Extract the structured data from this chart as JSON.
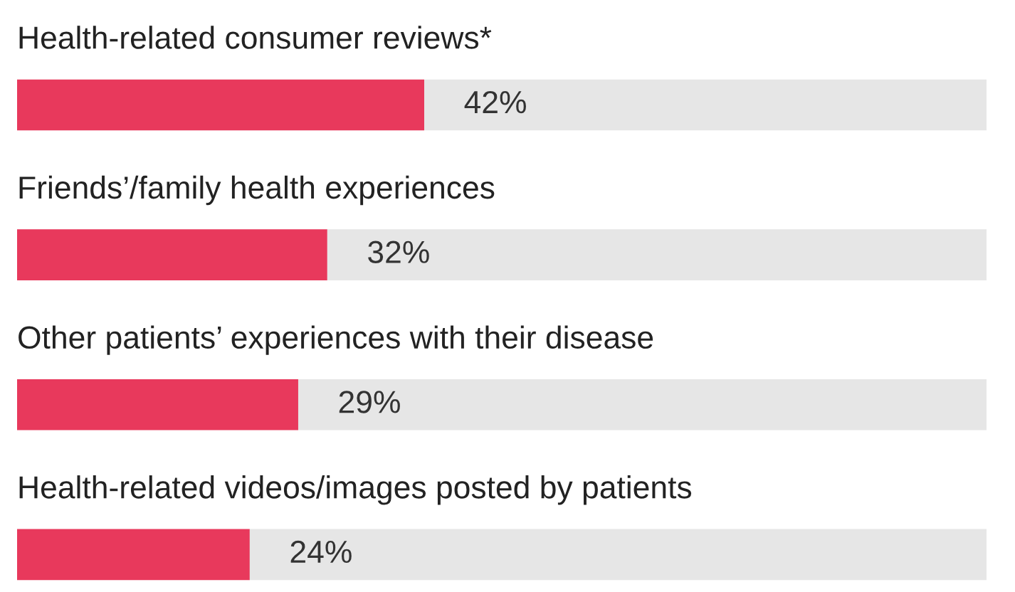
{
  "chart_data": {
    "type": "bar",
    "orientation": "horizontal",
    "stacked": true,
    "categories": [
      "Health-related consumer reviews*",
      "Friends’/family health experiences",
      "Other patients’ experiences with their disease",
      "Health-related videos/images posted by patients"
    ],
    "series": [
      {
        "color": "#e8395c",
        "values": [
          42,
          32,
          29,
          24
        ],
        "value_labels": [
          "42%",
          "32%",
          "29%",
          "24%"
        ]
      },
      {
        "color": "#e6e6e6",
        "values": [
          58,
          68,
          71,
          76
        ]
      }
    ],
    "xlim": [
      0,
      100
    ]
  }
}
